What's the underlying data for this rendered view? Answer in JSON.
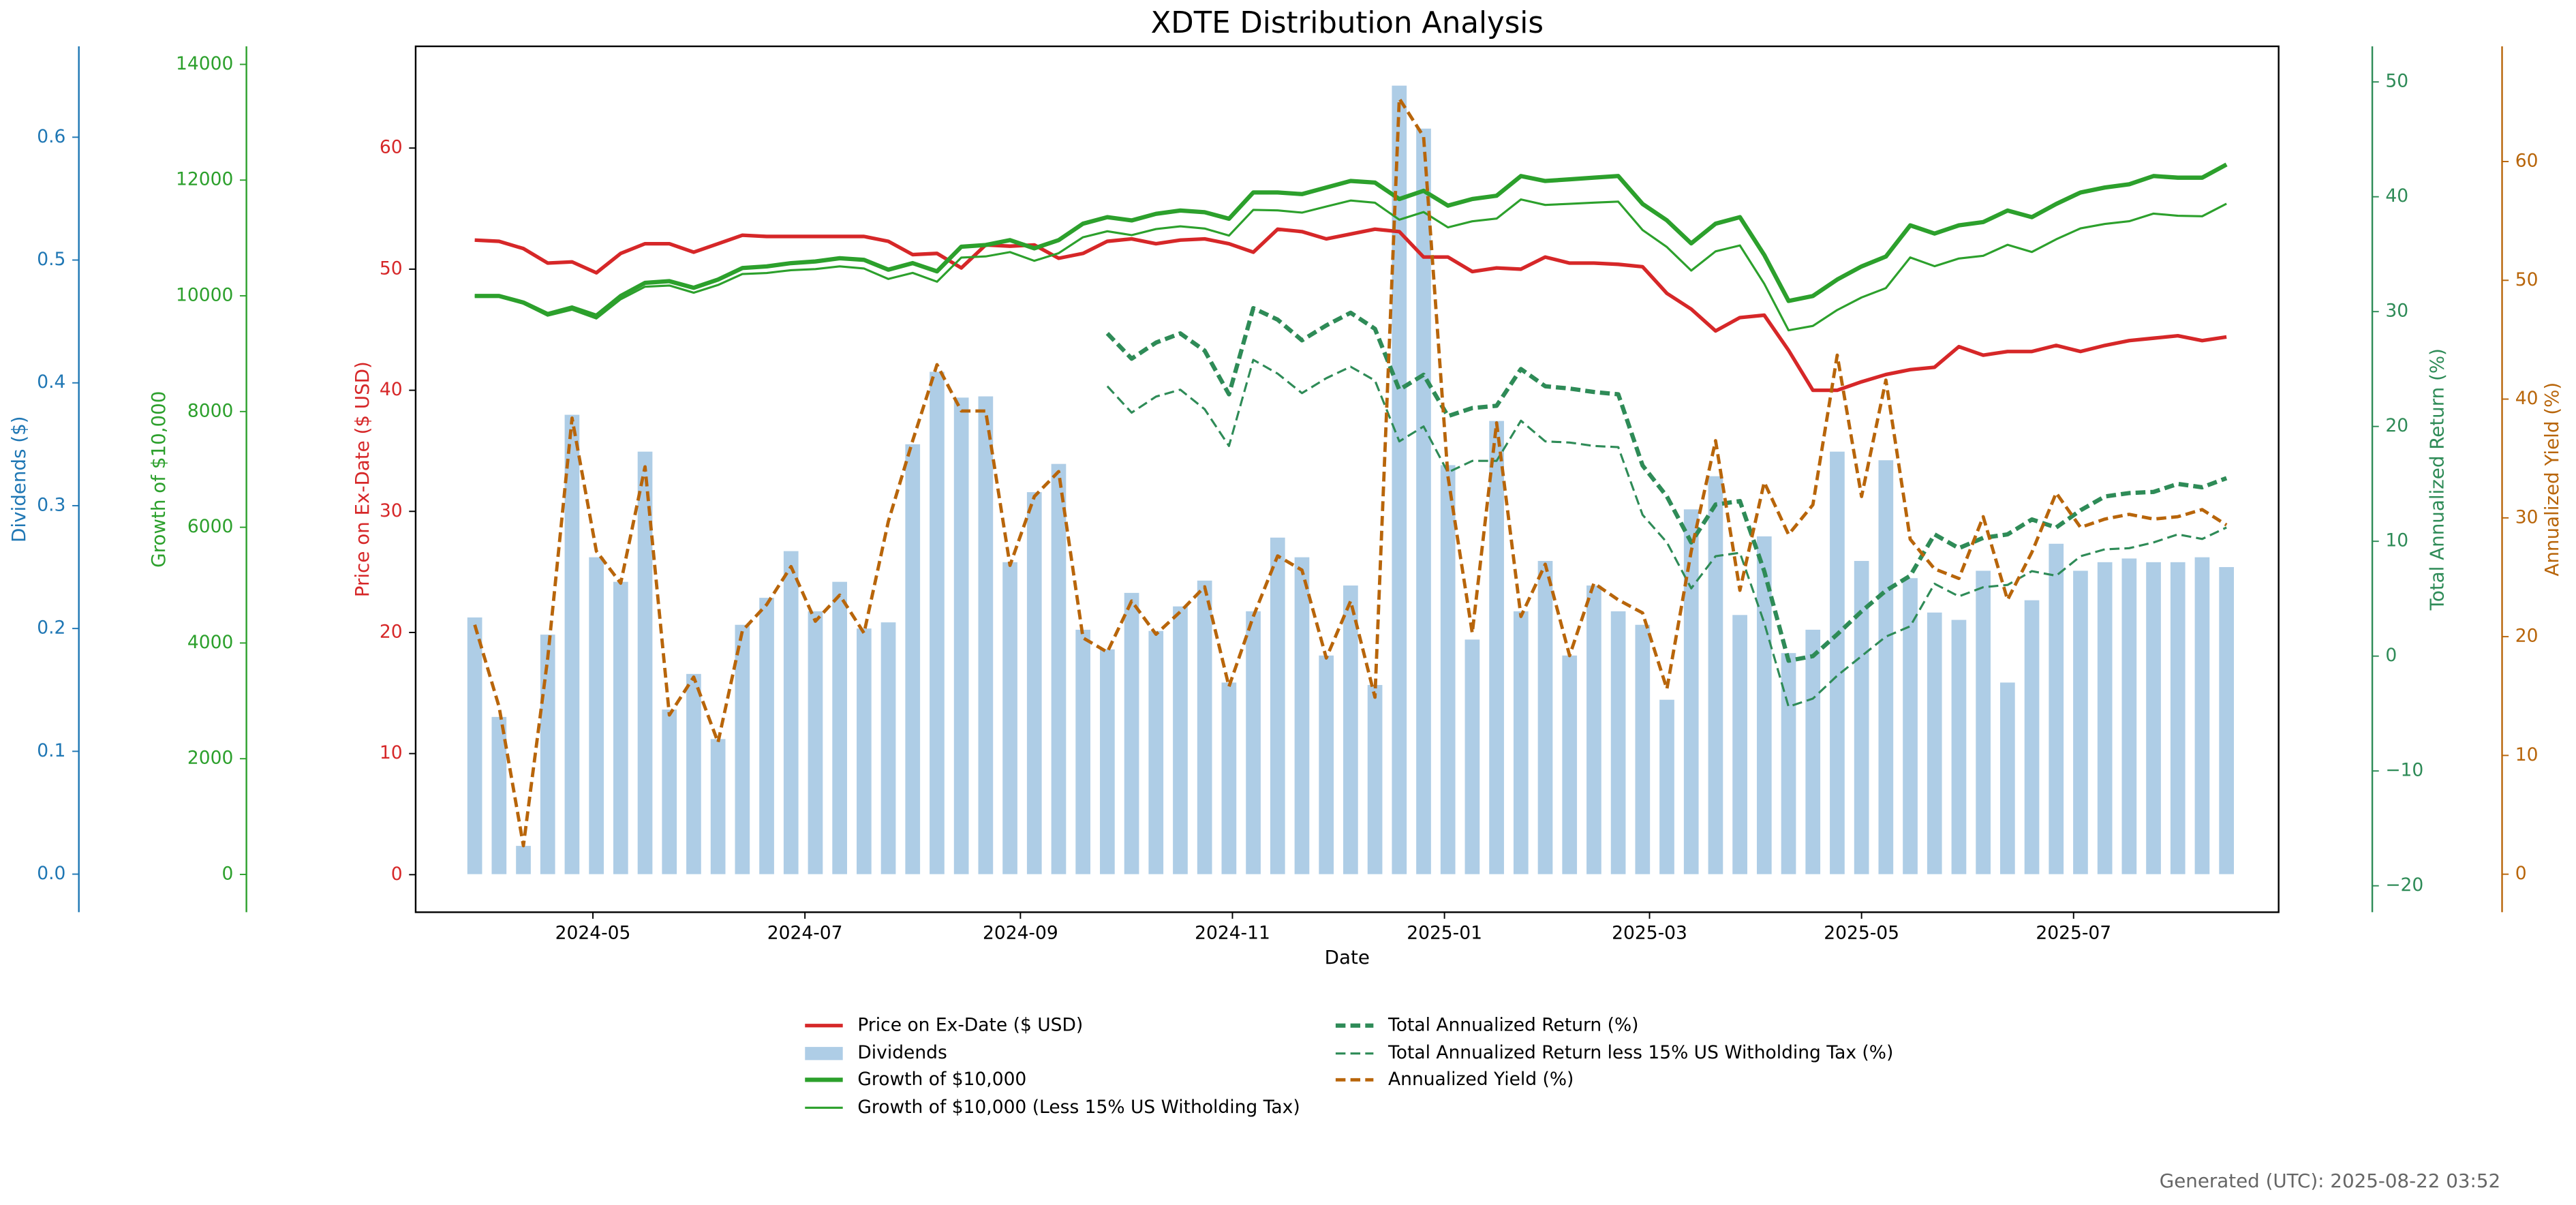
{
  "chart_data": {
    "type": "line",
    "title": "XDTE Distribution Analysis",
    "xlabel": "Date",
    "footer": "Generated (UTC): 2025-08-22 03:52",
    "x": [
      "2024-03-28",
      "2024-04-04",
      "2024-04-11",
      "2024-04-18",
      "2024-04-25",
      "2024-05-02",
      "2024-05-09",
      "2024-05-16",
      "2024-05-23",
      "2024-05-30",
      "2024-06-06",
      "2024-06-13",
      "2024-06-20",
      "2024-06-27",
      "2024-07-04",
      "2024-07-11",
      "2024-07-18",
      "2024-07-25",
      "2024-08-01",
      "2024-08-08",
      "2024-08-15",
      "2024-08-22",
      "2024-08-29",
      "2024-09-05",
      "2024-09-12",
      "2024-09-19",
      "2024-09-26",
      "2024-10-03",
      "2024-10-10",
      "2024-10-17",
      "2024-10-24",
      "2024-10-31",
      "2024-11-07",
      "2024-11-14",
      "2024-11-21",
      "2024-11-28",
      "2024-12-05",
      "2024-12-12",
      "2024-12-19",
      "2024-12-26",
      "2025-01-02",
      "2025-01-09",
      "2025-01-16",
      "2025-01-23",
      "2025-01-30",
      "2025-02-06",
      "2025-02-13",
      "2025-02-20",
      "2025-02-27",
      "2025-03-06",
      "2025-03-13",
      "2025-03-20",
      "2025-03-27",
      "2025-04-03",
      "2025-04-10",
      "2025-04-17",
      "2025-04-24",
      "2025-05-01",
      "2025-05-08",
      "2025-05-15",
      "2025-05-22",
      "2025-05-29",
      "2025-06-05",
      "2025-06-12",
      "2025-06-19",
      "2025-06-26",
      "2025-07-03",
      "2025-07-10",
      "2025-07-17",
      "2025-07-24",
      "2025-07-31",
      "2025-08-07",
      "2025-08-14"
    ],
    "xlim": [
      "2024-03-11",
      "2025-08-29"
    ],
    "xticks": [
      "2024-05",
      "2024-07",
      "2024-09",
      "2024-11",
      "2025-01",
      "2025-03",
      "2025-05",
      "2025-07"
    ],
    "ylabel": "Price on Ex-Date ($ USD)",
    "ycolor": "#d62728",
    "ylim": [
      -3.1,
      68.4
    ],
    "yticks": [
      0,
      10,
      20,
      30,
      40,
      50,
      60
    ],
    "y2label": "Dividends ($)",
    "y2color": "#1f77b4",
    "y2lim": [
      -0.031,
      0.674
    ],
    "y2ticks": [
      {
        "value": 0,
        "label": "0.0"
      },
      0.1,
      0.2,
      0.3,
      0.4,
      0.5,
      0.6
    ],
    "y3label": "Growth of $10,000",
    "y3color": "#2ca02c",
    "y3lim": [
      -653,
      14312
    ],
    "y3ticks": [
      0,
      2000,
      4000,
      6000,
      8000,
      10000,
      12000,
      14000
    ],
    "y4label": "Total Annualized Return (%)",
    "y4color": "#2e8b57",
    "y4lim": [
      -22.3,
      53.1
    ],
    "y4ticks": [
      {
        "value": -20,
        "label": "−20"
      },
      {
        "value": -10,
        "label": "−10"
      },
      0,
      10,
      20,
      30,
      40,
      50
    ],
    "y5label": "Annualized Yield (%)",
    "y5color": "#b8650a",
    "y5lim": [
      -3.2,
      69.7
    ],
    "y5ticks": [
      0,
      10,
      20,
      30,
      40,
      50,
      60
    ],
    "series": [
      {
        "name": "Price on Ex-Date ($ USD)",
        "type": "line",
        "axis": "y",
        "color": "#d62728",
        "linestyle": "solid",
        "values": [
          52.4,
          52.3,
          51.7,
          50.5,
          50.6,
          49.7,
          51.3,
          52.1,
          52.1,
          51.4,
          52.1,
          52.8,
          52.7,
          52.7,
          52.7,
          52.7,
          52.7,
          52.3,
          51.2,
          51.3,
          50.1,
          52.0,
          51.9,
          52.0,
          50.9,
          51.3,
          52.3,
          52.5,
          52.1,
          52.4,
          52.5,
          52.1,
          51.4,
          53.3,
          53.1,
          52.5,
          52.9,
          53.3,
          53.1,
          51.0,
          51.0,
          49.8,
          50.1,
          50.0,
          51.0,
          50.5,
          50.5,
          50.4,
          50.2,
          48.0,
          46.7,
          44.9,
          46.0,
          46.2,
          43.3,
          40.0,
          40.0,
          40.7,
          41.3,
          41.7,
          41.9,
          43.6,
          42.9,
          43.2,
          43.2,
          43.7,
          43.2,
          43.7,
          44.1,
          44.3,
          44.5,
          44.1,
          44.4
        ]
      },
      {
        "name": "Dividends",
        "type": "bar",
        "axis": "y2",
        "color": "#aecde6",
        "values": [
          0.209,
          0.128,
          0.023,
          0.195,
          0.374,
          0.258,
          0.238,
          0.344,
          0.134,
          0.163,
          0.11,
          0.203,
          0.225,
          0.263,
          0.214,
          0.238,
          0.2,
          0.205,
          0.35,
          0.409,
          0.388,
          0.389,
          0.254,
          0.311,
          0.334,
          0.199,
          0.183,
          0.229,
          0.198,
          0.218,
          0.239,
          0.156,
          0.214,
          0.274,
          0.258,
          0.178,
          0.235,
          0.154,
          0.642,
          0.607,
          0.333,
          0.191,
          0.369,
          0.214,
          0.255,
          0.178,
          0.235,
          0.214,
          0.203,
          0.142,
          0.297,
          0.324,
          0.211,
          0.275,
          0.18,
          0.199,
          0.344,
          0.255,
          0.337,
          0.241,
          0.213,
          0.207,
          0.247,
          0.156,
          0.223,
          0.269,
          0.247,
          0.254,
          0.257,
          0.254,
          0.254,
          0.258,
          0.25
        ]
      },
      {
        "name": "Growth of $10,000",
        "type": "line",
        "axis": "y3",
        "color": "#2ca02c",
        "linestyle": "solid",
        "values": [
          9997,
          9997,
          9884,
          9685,
          9798,
          9656,
          9997,
          10224,
          10253,
          10139,
          10281,
          10480,
          10508,
          10565,
          10594,
          10650,
          10622,
          10452,
          10565,
          10423,
          10849,
          10878,
          10963,
          10821,
          10963,
          11247,
          11360,
          11303,
          11417,
          11474,
          11445,
          11332,
          11786,
          11786,
          11758,
          11872,
          11985,
          11957,
          11673,
          11815,
          11559,
          11673,
          11730,
          12070,
          11985,
          12013,
          12042,
          12070,
          11588,
          11304,
          10906,
          11247,
          11360,
          10707,
          9912,
          9997,
          10281,
          10508,
          10679,
          11218,
          11076,
          11218,
          11275,
          11474,
          11360,
          11588,
          11786,
          11872,
          11928,
          12070,
          12042,
          12042,
          12269
        ]
      },
      {
        "name": "Growth of $10,000 (Less 15% US Witholding Tax)",
        "type": "line",
        "axis": "y3",
        "color": "#2ca02c",
        "linestyle": "solid",
        "values": [
          9997,
          9988,
          9865,
          9657,
          9760,
          9609,
          9941,
          10158,
          10178,
          10054,
          10187,
          10377,
          10395,
          10443,
          10462,
          10509,
          10472,
          10292,
          10396,
          10244,
          10661,
          10681,
          10756,
          10605,
          10737,
          11012,
          11116,
          11049,
          11154,
          11201,
          11163,
          11041,
          11485,
          11476,
          11438,
          11543,
          11647,
          11609,
          11316,
          11448,
          11183,
          11288,
          11335,
          11666,
          11571,
          11590,
          11610,
          11628,
          11137,
          10843,
          10436,
          10768,
          10871,
          10209,
          9404,
          9480,
          9755,
          9972,
          10134,
          10663,
          10512,
          10645,
          10692,
          10882,
          10758,
          10977,
          11166,
          11242,
          11289,
          11421,
          11384,
          11375,
          11592
        ]
      },
      {
        "name": "Total Annualized Return (%)",
        "type": "line",
        "axis": "y4",
        "color": "#2e8b57",
        "linestyle": "dashed",
        "values": [
          null,
          null,
          null,
          null,
          null,
          null,
          null,
          null,
          null,
          null,
          null,
          null,
          null,
          null,
          null,
          null,
          null,
          null,
          null,
          null,
          null,
          null,
          null,
          null,
          null,
          null,
          28.1,
          25.9,
          27.3,
          28.1,
          26.6,
          22.8,
          30.3,
          29.3,
          27.5,
          28.8,
          29.9,
          28.5,
          23.2,
          24.5,
          20.9,
          21.6,
          21.8,
          25.0,
          23.5,
          23.3,
          23.0,
          22.8,
          16.6,
          13.9,
          9.9,
          13.2,
          13.5,
          7.4,
          -0.4,
          0.0,
          1.9,
          3.9,
          5.7,
          7.0,
          10.6,
          9.4,
          10.3,
          10.6,
          11.9,
          11.2,
          12.7,
          13.9,
          14.2,
          14.3,
          15.0,
          14.7,
          15.5
        ]
      },
      {
        "name": "Total Annualized Return less 15% US Witholding Tax (%)",
        "type": "line",
        "axis": "y4",
        "color": "#2e8b57",
        "linestyle": "dashed",
        "values": [
          null,
          null,
          null,
          null,
          null,
          null,
          null,
          null,
          null,
          null,
          null,
          null,
          null,
          null,
          null,
          null,
          null,
          null,
          null,
          null,
          null,
          null,
          null,
          null,
          null,
          null,
          23.5,
          21.2,
          22.6,
          23.2,
          21.5,
          18.3,
          25.8,
          24.6,
          22.9,
          24.2,
          25.2,
          24.0,
          18.7,
          20.0,
          16.0,
          17.0,
          17.0,
          20.5,
          18.7,
          18.6,
          18.3,
          18.2,
          12.3,
          9.9,
          5.9,
          8.7,
          9.0,
          2.9,
          -4.4,
          -3.7,
          -1.7,
          0.0,
          1.7,
          2.6,
          6.3,
          5.2,
          6.0,
          6.2,
          7.4,
          7.0,
          8.7,
          9.3,
          9.4,
          9.9,
          10.6,
          10.2,
          11.2
        ]
      },
      {
        "name": "Annualized Yield (%)",
        "type": "line",
        "axis": "y5",
        "color": "#b8650a",
        "linestyle": "dashed",
        "values": [
          21.0,
          14.1,
          2.4,
          18.2,
          38.4,
          27.2,
          24.5,
          34.3,
          13.4,
          16.6,
          11.1,
          20.5,
          22.7,
          25.9,
          21.3,
          23.5,
          20.3,
          29.7,
          36.5,
          42.9,
          39.0,
          39.0,
          26.0,
          31.8,
          33.9,
          19.9,
          18.7,
          23.0,
          20.2,
          22.1,
          24.2,
          15.8,
          21.7,
          26.8,
          25.6,
          18.2,
          23.0,
          14.9,
          65.3,
          62.1,
          33.5,
          20.3,
          38.0,
          21.7,
          26.1,
          18.4,
          24.5,
          23.1,
          22.0,
          15.6,
          27.2,
          36.5,
          23.9,
          33.0,
          28.6,
          31.1,
          43.7,
          31.8,
          41.6,
          28.2,
          25.7,
          24.9,
          30.1,
          23.1,
          27.1,
          32.1,
          29.2,
          29.9,
          30.3,
          29.9,
          30.1,
          30.7,
          29.4
        ]
      }
    ]
  }
}
